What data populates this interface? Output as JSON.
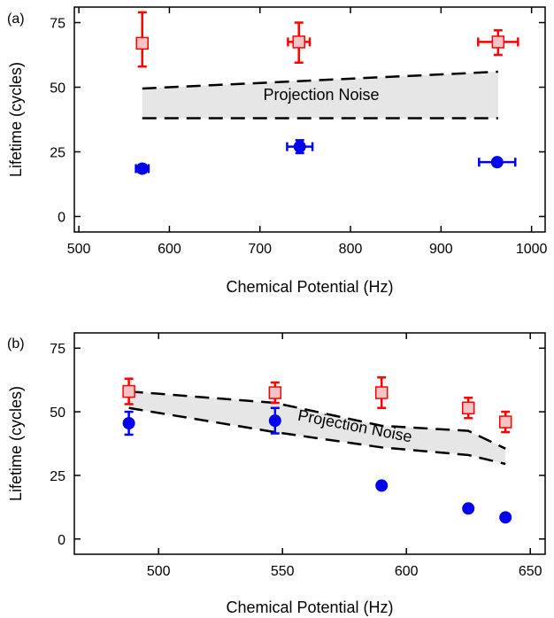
{
  "chart_data": [
    {
      "type": "scatter",
      "panel_label": "(a)",
      "xlabel": "Chemical Potential (Hz)",
      "ylabel": "Lifetime (cycles)",
      "xlim": [
        495,
        1015
      ],
      "ylim": [
        -6,
        81
      ],
      "xticks": [
        500,
        600,
        700,
        800,
        900,
        1000
      ],
      "yticks": [
        0,
        25,
        50,
        75
      ],
      "annotation": "Projection Noise",
      "series": [
        {
          "marker": "square",
          "color": "#ff0000",
          "fill": "#f6c4c4",
          "points": [
            {
              "x": 570,
              "y": 67,
              "xerr": 4,
              "yerr_low": 9,
              "yerr_high": 12
            },
            {
              "x": 743,
              "y": 67.5,
              "xerr": 12,
              "yerr_low": 8,
              "yerr_high": 7.5
            },
            {
              "x": 963,
              "y": 67.5,
              "xerr": 22,
              "yerr_low": 5,
              "yerr_high": 4.5
            }
          ]
        },
        {
          "marker": "circle",
          "color": "#0000ee",
          "fill": "#0000ee",
          "points": [
            {
              "x": 570,
              "y": 18.5,
              "xerr": 7,
              "yerr_low": 1.5,
              "yerr_high": 1.5
            },
            {
              "x": 744,
              "y": 27,
              "xerr": 14,
              "yerr_low": 2.5,
              "yerr_high": 2.5
            },
            {
              "x": 962,
              "y": 21,
              "xerr": 20,
              "yerr_low": 1,
              "yerr_high": 1
            }
          ]
        }
      ],
      "band": {
        "x": [
          570,
          963
        ],
        "upper": [
          49.5,
          56
        ],
        "lower": [
          38,
          38
        ]
      }
    },
    {
      "type": "scatter",
      "panel_label": "(b)",
      "xlabel": "Chemical Potential (Hz)",
      "ylabel": "Lifetime (cycles)",
      "xlim": [
        466,
        656
      ],
      "ylim": [
        -6,
        81
      ],
      "xticks": [
        500,
        550,
        600,
        650
      ],
      "yticks": [
        0,
        25,
        50,
        75
      ],
      "annotation": "Projection Noise",
      "series": [
        {
          "marker": "square",
          "color": "#ff0000",
          "fill": "#f6c4c4",
          "points": [
            {
              "x": 488,
              "y": 58,
              "xerr": 0,
              "yerr_low": 5,
              "yerr_high": 5
            },
            {
              "x": 547,
              "y": 57.5,
              "xerr": 0,
              "yerr_low": 4,
              "yerr_high": 4
            },
            {
              "x": 590,
              "y": 57.5,
              "xerr": 0,
              "yerr_low": 6,
              "yerr_high": 6
            },
            {
              "x": 625,
              "y": 51.5,
              "xerr": 0,
              "yerr_low": 4,
              "yerr_high": 4
            },
            {
              "x": 640,
              "y": 46,
              "xerr": 0,
              "yerr_low": 4,
              "yerr_high": 4
            }
          ]
        },
        {
          "marker": "circle",
          "color": "#0000ee",
          "fill": "#0000ee",
          "points": [
            {
              "x": 488,
              "y": 45.5,
              "xerr": 0,
              "yerr_low": 4.5,
              "yerr_high": 4.5
            },
            {
              "x": 547,
              "y": 46.5,
              "xerr": 0,
              "yerr_low": 5,
              "yerr_high": 5
            },
            {
              "x": 590,
              "y": 21,
              "xerr": 0,
              "yerr_low": 0,
              "yerr_high": 0
            },
            {
              "x": 625,
              "y": 12,
              "xerr": 0,
              "yerr_low": 0,
              "yerr_high": 0
            },
            {
              "x": 640,
              "y": 8.5,
              "xerr": 0,
              "yerr_low": 0,
              "yerr_high": 0
            }
          ]
        }
      ],
      "band": {
        "x": [
          488,
          547,
          590,
          625,
          640
        ],
        "upper": [
          58,
          53.5,
          44.5,
          42.5,
          35.5
        ],
        "lower": [
          51.5,
          42,
          36,
          33,
          29.5
        ]
      }
    }
  ]
}
